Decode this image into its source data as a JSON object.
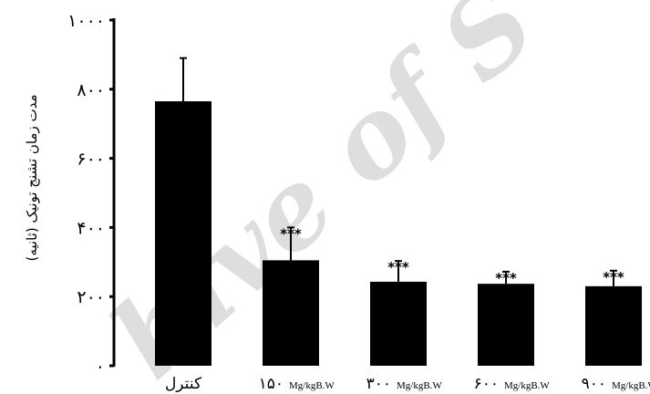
{
  "watermark": "hive of S",
  "chart_data": {
    "type": "bar",
    "ylabel": "مدت زمان تشنج تونیک (ثانیه)",
    "ylim": [
      0,
      1000
    ],
    "yticks": [
      {
        "value": 0,
        "label": "۰"
      },
      {
        "value": 200,
        "label": "۲۰۰"
      },
      {
        "value": 400,
        "label": "۴۰۰"
      },
      {
        "value": 600,
        "label": "۶۰۰"
      },
      {
        "value": 800,
        "label": "۸۰۰"
      },
      {
        "value": 1000,
        "label": "۱۰۰۰"
      }
    ],
    "categories": [
      {
        "dose": "کنترل",
        "unit": ""
      },
      {
        "dose": "۱۵۰",
        "unit": "Mg/kgB.W"
      },
      {
        "dose": "۳۰۰",
        "unit": "Mg/kgB.W"
      },
      {
        "dose": "۶۰۰",
        "unit": "Mg/kgB.W"
      },
      {
        "dose": "۹۰۰",
        "unit": "Mg/kgB.W"
      }
    ],
    "values": [
      765,
      305,
      243,
      237,
      230
    ],
    "errors": [
      125,
      95,
      60,
      35,
      45
    ],
    "significance": [
      "",
      "***",
      "***",
      "***",
      "***"
    ],
    "colors": {
      "bar": "#000000",
      "axis": "#000000"
    }
  }
}
